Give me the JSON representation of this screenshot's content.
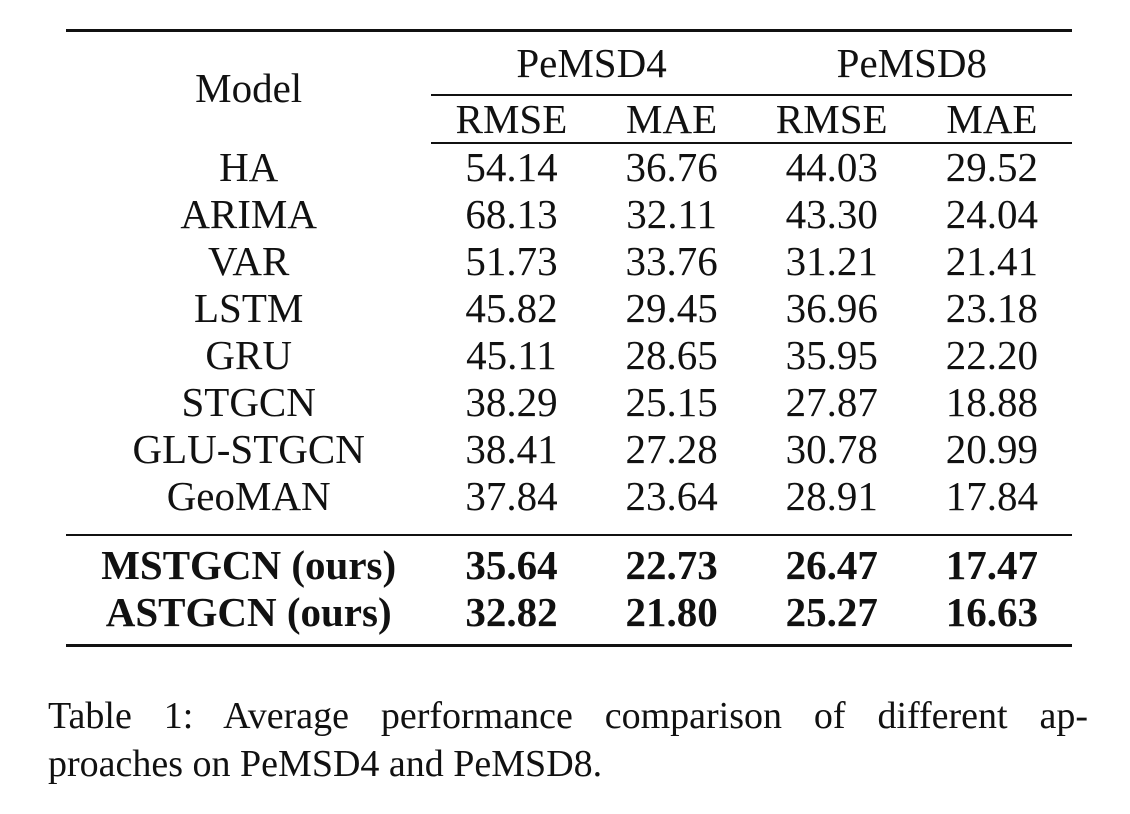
{
  "table": {
    "model_header": "Model",
    "groups": [
      "PeMSD4",
      "PeMSD8"
    ],
    "metrics": [
      "RMSE",
      "MAE",
      "RMSE",
      "MAE"
    ],
    "baseline_rows": [
      {
        "model": "HA",
        "values": [
          "54.14",
          "36.76",
          "44.03",
          "29.52"
        ]
      },
      {
        "model": "ARIMA",
        "values": [
          "68.13",
          "32.11",
          "43.30",
          "24.04"
        ]
      },
      {
        "model": "VAR",
        "values": [
          "51.73",
          "33.76",
          "31.21",
          "21.41"
        ]
      },
      {
        "model": "LSTM",
        "values": [
          "45.82",
          "29.45",
          "36.96",
          "23.18"
        ]
      },
      {
        "model": "GRU",
        "values": [
          "45.11",
          "28.65",
          "35.95",
          "22.20"
        ]
      },
      {
        "model": "STGCN",
        "values": [
          "38.29",
          "25.15",
          "27.87",
          "18.88"
        ]
      },
      {
        "model": "GLU-STGCN",
        "values": [
          "38.41",
          "27.28",
          "30.78",
          "20.99"
        ]
      },
      {
        "model": "GeoMAN",
        "values": [
          "37.84",
          "23.64",
          "28.91",
          "17.84"
        ]
      }
    ],
    "ours_rows": [
      {
        "model": "MSTGCN (ours)",
        "values": [
          "35.64",
          "22.73",
          "26.47",
          "17.47"
        ]
      },
      {
        "model": "ASTGCN (ours)",
        "values": [
          "32.82",
          "21.80",
          "25.27",
          "16.63"
        ]
      }
    ]
  },
  "caption": {
    "line1": "Table 1: Average performance comparison of different ap-",
    "line2": "proaches on PeMSD4 and PeMSD8."
  }
}
